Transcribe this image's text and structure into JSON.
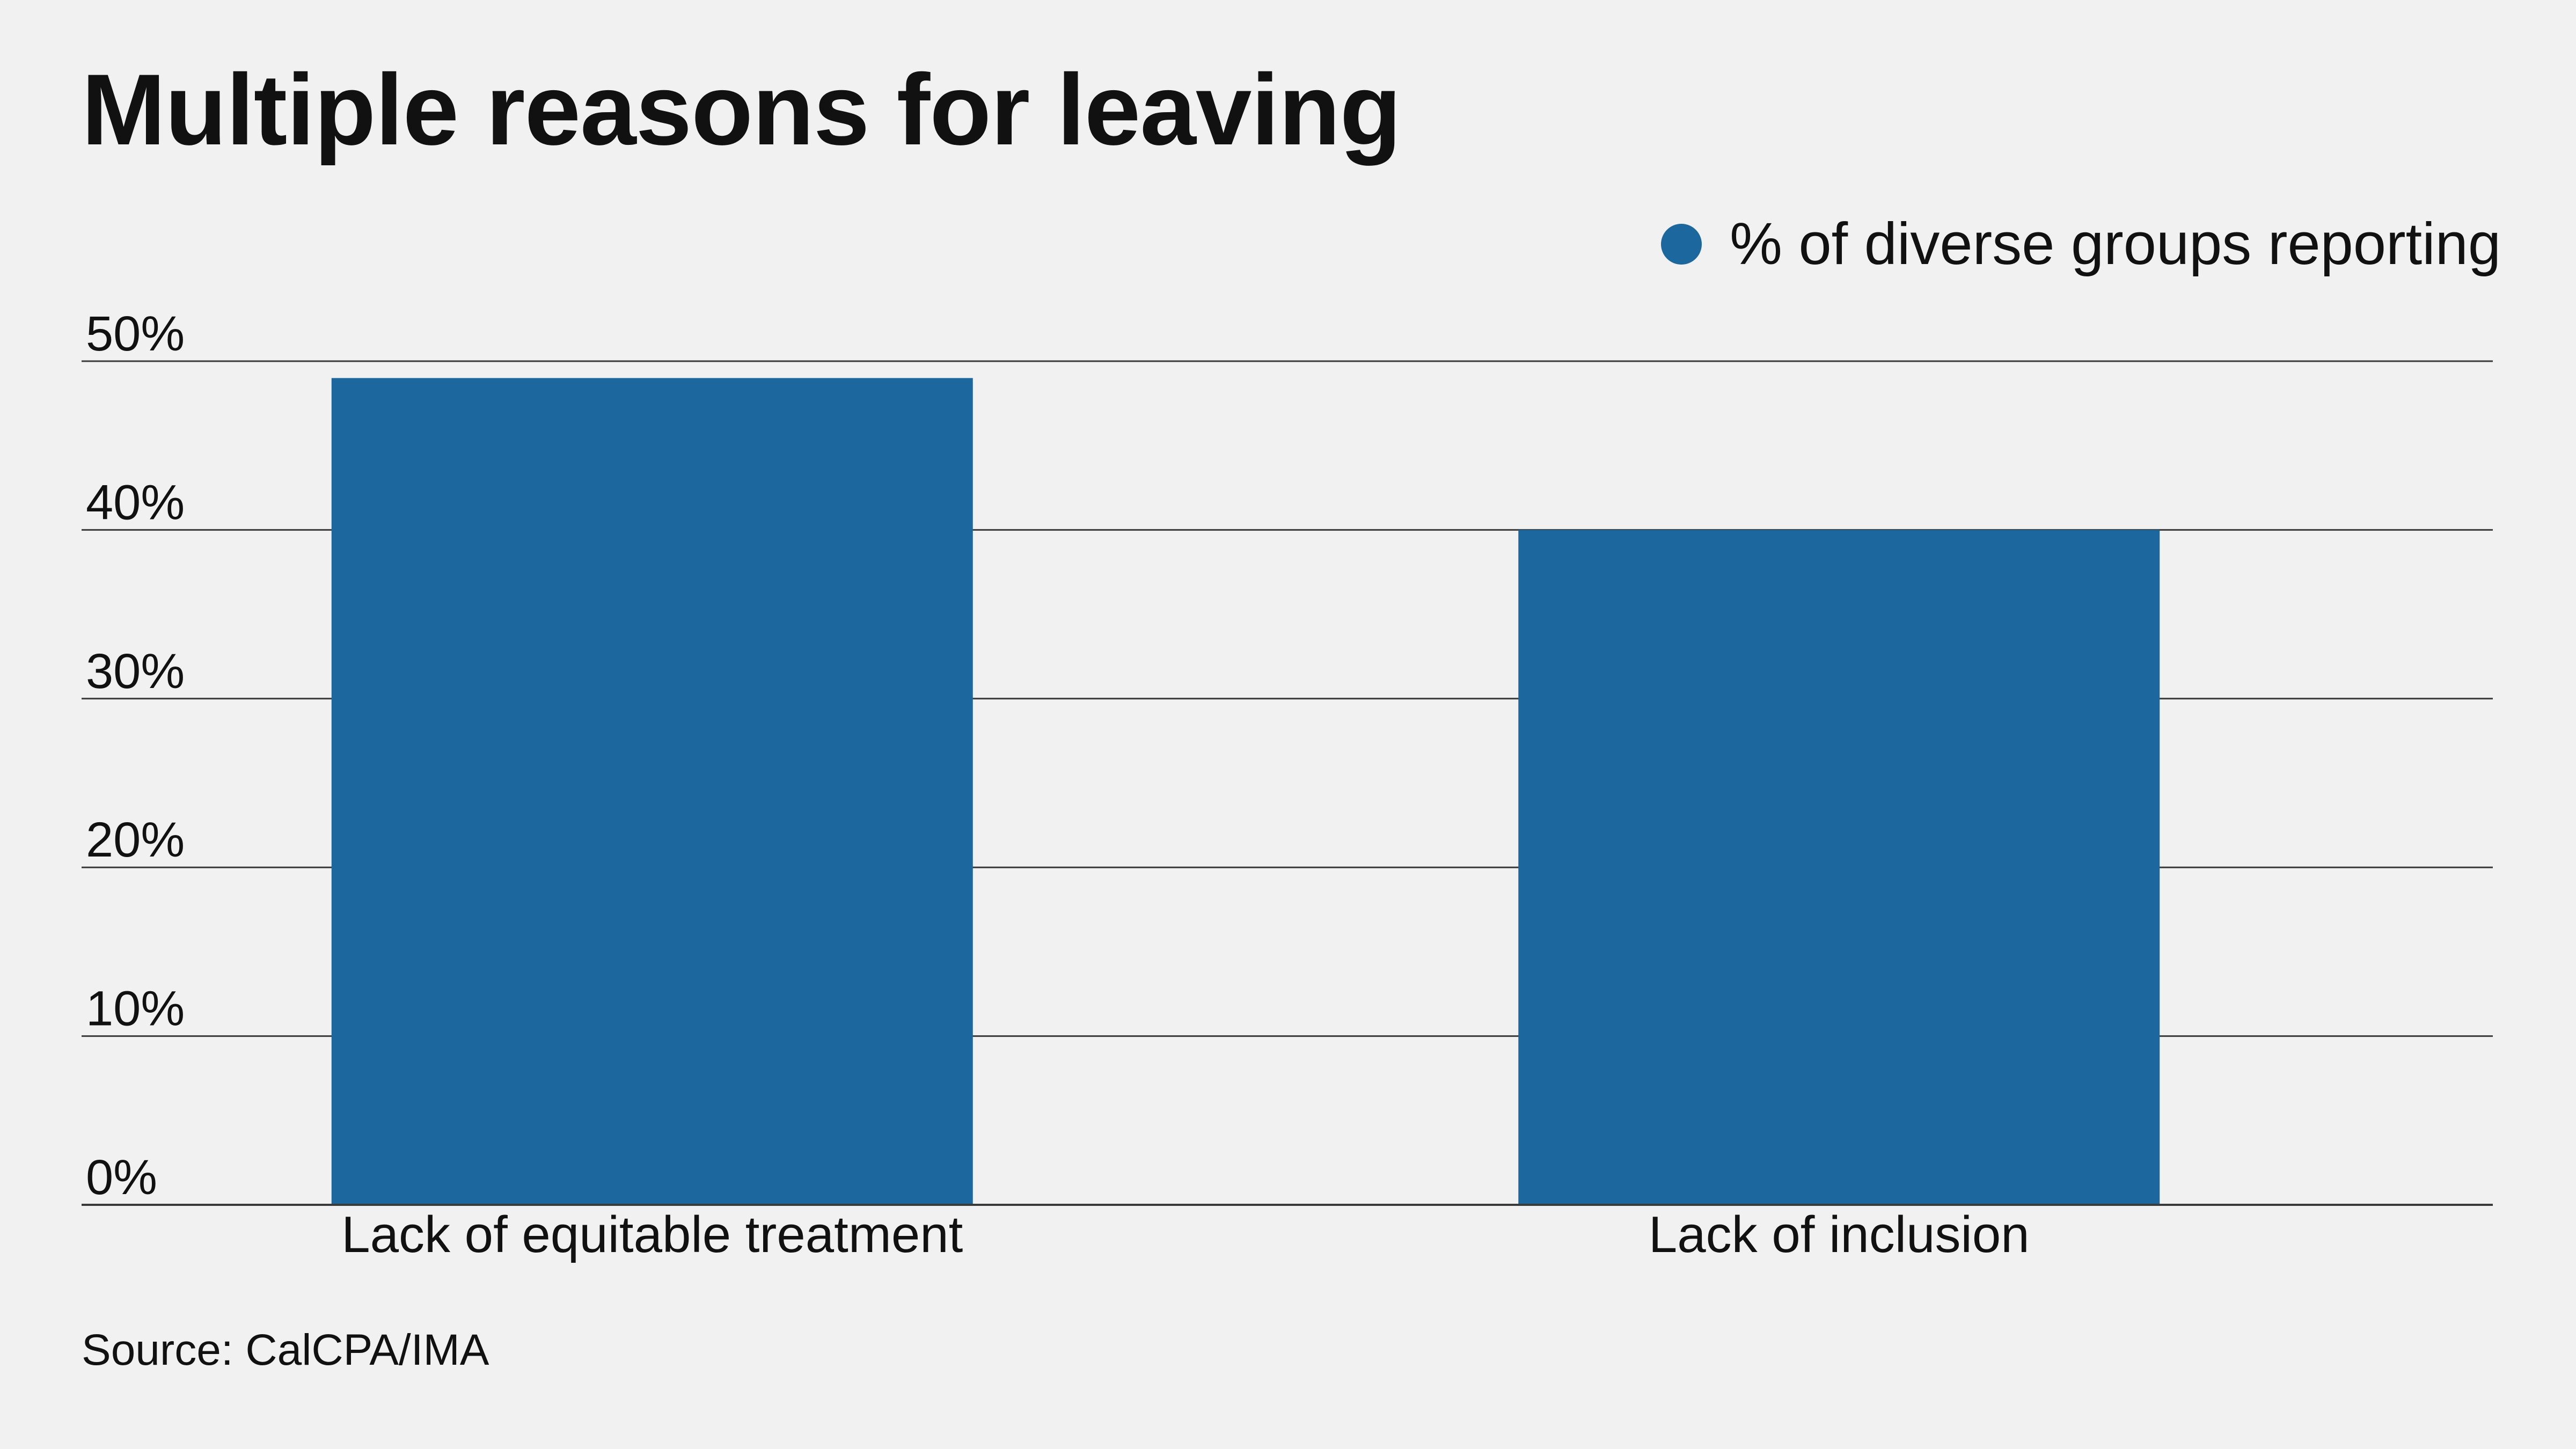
{
  "title": "Multiple reasons for leaving",
  "source": "Source: CalCPA/IMA",
  "colors": {
    "bar": "#1c679d",
    "gridline": "#3a3a3a",
    "background": "#f0f1f0",
    "text": "#111111"
  },
  "chart_data": {
    "type": "bar",
    "title": "Multiple reasons for leaving",
    "xlabel": "",
    "ylabel": "",
    "categories": [
      "Lack of equitable treatment",
      "Lack of inclusion"
    ],
    "series": [
      {
        "name": "% of diverse groups reporting",
        "values": [
          49,
          40
        ]
      }
    ],
    "ylim": [
      0,
      50
    ],
    "yticks": [
      0,
      10,
      20,
      30,
      40,
      50
    ],
    "ytick_labels": [
      "0%",
      "10%",
      "20%",
      "30%",
      "40%",
      "50%"
    ],
    "grid": true,
    "legend_position": "top-right"
  }
}
